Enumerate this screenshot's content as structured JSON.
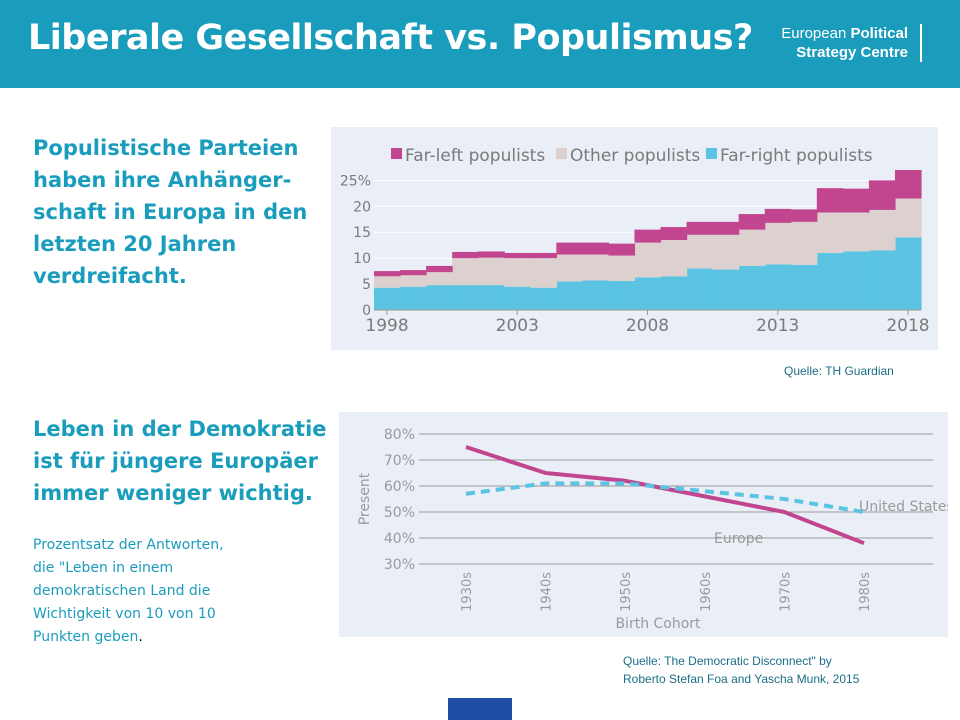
{
  "header": {
    "title": "Liberale Gesellschaft vs. Populismus?",
    "logo_line1_regular": "European ",
    "logo_line1_bold": "Political",
    "logo_line2": "Strategy Centre"
  },
  "section1": {
    "heading_lines": [
      "Populistische Parteien",
      "haben ihre Anhänger-",
      "schaft  in Europa in den",
      "letzten 20 Jahren",
      "verdreifacht."
    ],
    "source": "Quelle: TH Guardian"
  },
  "section2": {
    "heading_lines": [
      "Leben in der Demokratie",
      "ist für jüngere Europäer",
      "immer weniger wichtig."
    ],
    "caption_lines": [
      "Prozentsatz der Antworten,",
      "die \"Leben in einem",
      "demokratischen Land die",
      "Wichtigkeit von 10 von 10"
    ],
    "caption_last": "Punkten geben",
    "caption_tail": ".",
    "source_lines": [
      "Quelle: The Democratic Disconnect\" by",
      "Roberto Stefan Foa and Yascha Munk, 2015"
    ]
  },
  "chart_data": [
    {
      "type": "area",
      "stacked": true,
      "title": "",
      "xlabel": "",
      "ylabel": "",
      "ylim": [
        0,
        27
      ],
      "y_ticks": [
        "0",
        "5",
        "10",
        "15",
        "20",
        "25%"
      ],
      "x_ticks": [
        "1998",
        "2003",
        "2008",
        "2013",
        "2018"
      ],
      "legend_position": "top",
      "x": [
        1998,
        1999,
        2000,
        2001,
        2002,
        2003,
        2004,
        2005,
        2006,
        2007,
        2008,
        2009,
        2010,
        2011,
        2012,
        2013,
        2014,
        2015,
        2016,
        2017,
        2018
      ],
      "series": [
        {
          "name": "Far-right populists",
          "color": "#5bc4e3",
          "values": [
            4.3,
            4.5,
            4.8,
            4.8,
            4.8,
            4.5,
            4.3,
            5.5,
            5.7,
            5.6,
            6.3,
            6.5,
            8.0,
            7.8,
            8.5,
            8.8,
            8.7,
            11.0,
            11.3,
            11.5,
            14.0
          ]
        },
        {
          "name": "Other populists",
          "color": "#ddd1cf",
          "values": [
            2.2,
            2.2,
            2.5,
            5.2,
            5.3,
            5.5,
            5.7,
            5.2,
            5.0,
            4.9,
            6.7,
            7.0,
            6.5,
            6.7,
            7.0,
            8.0,
            8.3,
            7.8,
            7.5,
            7.8,
            7.5
          ]
        },
        {
          "name": "Far-left populists",
          "color": "#c2468f",
          "values": [
            1.0,
            1.0,
            1.2,
            1.2,
            1.2,
            1.0,
            1.0,
            2.3,
            2.3,
            2.3,
            2.5,
            2.5,
            2.5,
            2.5,
            3.0,
            2.7,
            2.4,
            4.7,
            4.6,
            5.7,
            5.5
          ]
        }
      ]
    },
    {
      "type": "line",
      "title": "",
      "xlabel": "Birth Cohort",
      "ylabel": "Present",
      "ylim": [
        30,
        80
      ],
      "y_ticks": [
        "30%",
        "40%",
        "50%",
        "60%",
        "70%",
        "80%"
      ],
      "categories": [
        "1930s",
        "1940s",
        "1950s",
        "1960s",
        "1970s",
        "1980s"
      ],
      "grid": true,
      "series": [
        {
          "name": "United States",
          "color": "#c2468f",
          "style": "solid",
          "values": [
            75,
            65,
            62,
            56,
            50,
            38
          ]
        },
        {
          "name": "Europe",
          "color": "#5bc4e3",
          "style": "dashed",
          "values": [
            57,
            61,
            61,
            58,
            55,
            50
          ]
        }
      ]
    }
  ]
}
